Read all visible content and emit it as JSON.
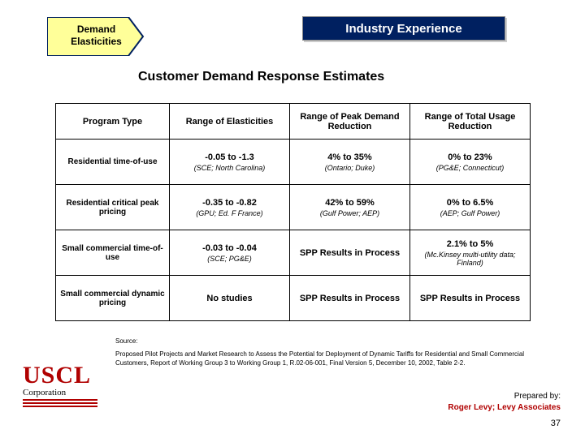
{
  "banner": {
    "title": "Industry Experience"
  },
  "chevron": {
    "line1": "Demand",
    "line2": "Elasticities"
  },
  "section_title": "Customer Demand Response Estimates",
  "columns": [
    "Program Type",
    "Range of Elasticities",
    "Range of Peak Demand Reduction",
    "Range of Total Usage Reduction"
  ],
  "col_widths": [
    "140px",
    "148px",
    "148px",
    "148px"
  ],
  "rows": [
    {
      "label": "Residential time-of-use",
      "c1_main": "-0.05 to -1.3",
      "c1_sub": "(SCE; North Carolina)",
      "c2_main": "4% to 35%",
      "c2_sub": "(Ontario; Duke)",
      "c3_main": "0% to 23%",
      "c3_sub": "(PG&E; Connecticut)"
    },
    {
      "label": "Residential critical peak pricing",
      "c1_main": "-0.35 to -0.82",
      "c1_sub": "(GPU; Ed. F France)",
      "c2_main": "42% to 59%",
      "c2_sub": "(Gulf Power; AEP)",
      "c3_main": "0% to 6.5%",
      "c3_sub": "(AEP; Gulf Power)"
    },
    {
      "label": "Small commercial time-of-use",
      "c1_main": "-0.03 to -0.04",
      "c1_sub": "(SCE; PG&E)",
      "c2_main": "SPP Results in Process",
      "c2_sub": "",
      "c3_main": "2.1% to 5%",
      "c3_sub": "(Mc.Kinsey multi-utility data; Finland)"
    },
    {
      "label": "Small commercial dynamic pricing",
      "c1_main": "No studies",
      "c1_sub": "",
      "c2_main": "SPP Results in Process",
      "c2_sub": "",
      "c3_main": "SPP Results in Process",
      "c3_sub": ""
    }
  ],
  "source": {
    "label": "Source:",
    "text": "Proposed Pilot Projects and Market Research to Assess the Potential for Deployment of Dynamic Tariffs for Residential and Small Commercial Customers, Report of Working Group 3 to Working Group 1, R.02-06-001, Final Version 5, December 10, 2002, Table 2-2."
  },
  "logo": {
    "main": "USCL",
    "sub": "Corporation"
  },
  "footer": {
    "prepared_by": "Prepared by:",
    "author": "Roger Levy; Levy Associates"
  },
  "page_number": "37",
  "colors": {
    "banner_bg": "#002060",
    "chevron_fill": "#ffff99",
    "chevron_border": "#002060",
    "accent_red": "#b00000"
  }
}
